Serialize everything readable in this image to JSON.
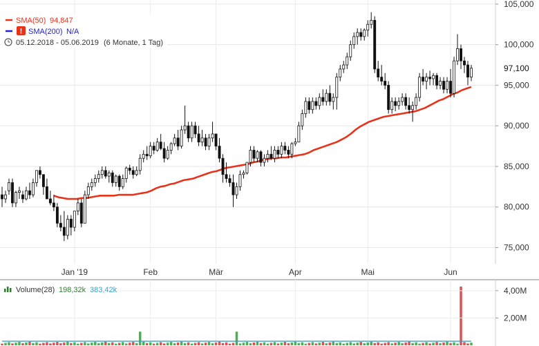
{
  "legend": {
    "sma50_label": "SMA(50)",
    "sma50_value": "94,847",
    "sma50_color": "#e8321a",
    "sma200_label": "SMA(200)",
    "sma200_value": "N/A",
    "sma200_color": "#2222cc",
    "warning_icon": "exclamation-warning-icon",
    "warning_color": "#e8321a",
    "period_icon": "clock-icon",
    "period_range": "05.12.2018 - 05.06.2019",
    "period_desc": "(6 Monate, 1 Tag)"
  },
  "volume_legend": {
    "icon": "bar-chart-icon",
    "label": "Volume(28)",
    "value1": "198,32k",
    "value2": "383,42k",
    "value1_color": "#2e7d32",
    "value2_color": "#3aa0c8"
  },
  "last_price_label": "97,100",
  "chart_data": [
    {
      "type": "candlestick",
      "x_tick_labels": [
        "Jan '19",
        "Feb",
        "Mär",
        "Apr",
        "Mai",
        "Jun"
      ],
      "y_tick_labels": [
        "105,000",
        "100,000",
        "95,000",
        "90,000",
        "85,000",
        "80,000",
        "75,000"
      ],
      "y_ticks": [
        105,
        100,
        95,
        90,
        85,
        80,
        75
      ],
      "ylim": [
        73,
        105.5
      ],
      "grid": true,
      "last_price": 97.1,
      "candle_up_color": "#ffffff",
      "candle_down_color": "#111111",
      "ohlc": [
        [
          81.5,
          82.5,
          80.0,
          81.0
        ],
        [
          81.0,
          82.0,
          80.5,
          81.5
        ],
        [
          82.0,
          83.5,
          81.5,
          83.0
        ],
        [
          83.0,
          83.5,
          80.0,
          80.5
        ],
        [
          80.5,
          82.0,
          80.0,
          81.8
        ],
        [
          81.8,
          82.5,
          81.0,
          82.0
        ],
        [
          81.5,
          82.0,
          80.5,
          81.0
        ],
        [
          81.0,
          82.5,
          80.8,
          82.0
        ],
        [
          82.0,
          83.0,
          81.0,
          81.5
        ],
        [
          81.5,
          83.5,
          81.2,
          83.0
        ],
        [
          83.0,
          84.5,
          82.5,
          84.5
        ],
        [
          84.5,
          85.0,
          83.5,
          84.0
        ],
        [
          84.0,
          84.0,
          81.5,
          82.5
        ],
        [
          82.5,
          83.5,
          81.0,
          81.0
        ],
        [
          81.0,
          82.0,
          80.2,
          80.5
        ],
        [
          80.5,
          81.5,
          79.5,
          80.0
        ],
        [
          80.0,
          80.5,
          77.5,
          78.0
        ],
        [
          78.0,
          79.0,
          77.0,
          77.5
        ],
        [
          77.5,
          79.5,
          75.8,
          76.5
        ],
        [
          76.5,
          79.0,
          76.0,
          78.5
        ],
        [
          78.5,
          79.0,
          76.5,
          77.5
        ],
        [
          77.5,
          79.5,
          77.0,
          79.5
        ],
        [
          79.5,
          81.0,
          79.0,
          80.5
        ],
        [
          80.5,
          81.0,
          77.5,
          78.0
        ],
        [
          78.0,
          82.0,
          78.0,
          81.5
        ],
        [
          81.5,
          83.0,
          81.0,
          82.5
        ],
        [
          82.5,
          83.5,
          82.0,
          83.0
        ],
        [
          83.0,
          84.0,
          82.5,
          83.5
        ],
        [
          83.5,
          84.5,
          83.0,
          84.0
        ],
        [
          84.0,
          85.0,
          83.5,
          84.5
        ],
        [
          84.5,
          85.0,
          83.5,
          83.8
        ],
        [
          83.8,
          84.5,
          83.0,
          84.2
        ],
        [
          84.2,
          84.5,
          82.5,
          83.0
        ],
        [
          83.0,
          84.0,
          82.5,
          83.8
        ],
        [
          83.8,
          84.0,
          82.0,
          82.5
        ],
        [
          82.5,
          84.0,
          82.2,
          83.5
        ],
        [
          83.5,
          85.0,
          83.0,
          84.8
        ],
        [
          84.8,
          85.2,
          84.0,
          84.5
        ],
        [
          84.5,
          85.0,
          83.5,
          84.0
        ],
        [
          84.0,
          85.0,
          83.8,
          84.5
        ],
        [
          84.5,
          86.5,
          84.0,
          86.0
        ],
        [
          86.0,
          87.0,
          85.5,
          86.5
        ],
        [
          86.5,
          87.5,
          85.8,
          86.3
        ],
        [
          86.3,
          88.0,
          86.0,
          87.5
        ],
        [
          87.5,
          88.0,
          86.5,
          87.0
        ],
        [
          87.0,
          88.5,
          86.8,
          88.0
        ],
        [
          88.0,
          89.0,
          87.0,
          87.2
        ],
        [
          87.2,
          88.0,
          85.5,
          86.0
        ],
        [
          86.0,
          87.5,
          85.8,
          87.0
        ],
        [
          87.0,
          88.0,
          86.5,
          87.8
        ],
        [
          87.8,
          89.0,
          87.5,
          88.5
        ],
        [
          88.5,
          89.5,
          87.0,
          87.5
        ],
        [
          87.5,
          90.0,
          87.2,
          89.5
        ],
        [
          89.5,
          92.5,
          89.0,
          90.0
        ],
        [
          90.0,
          90.5,
          88.0,
          88.5
        ],
        [
          88.5,
          90.5,
          88.0,
          90.0
        ],
        [
          90.0,
          90.5,
          88.5,
          89.0
        ],
        [
          89.0,
          90.0,
          87.5,
          88.0
        ],
        [
          88.0,
          89.5,
          87.5,
          88.5
        ],
        [
          88.5,
          89.0,
          87.0,
          87.5
        ],
        [
          87.5,
          89.0,
          87.0,
          88.5
        ],
        [
          88.5,
          90.5,
          88.0,
          89.0
        ],
        [
          89.0,
          89.0,
          87.0,
          87.5
        ],
        [
          87.5,
          88.5,
          85.5,
          86.0
        ],
        [
          86.0,
          86.5,
          83.0,
          84.0
        ],
        [
          84.0,
          85.5,
          83.0,
          83.5
        ],
        [
          83.5,
          84.0,
          82.5,
          83.0
        ],
        [
          83.0,
          84.0,
          80.0,
          81.5
        ],
        [
          81.5,
          83.0,
          81.0,
          82.5
        ],
        [
          82.5,
          84.5,
          82.0,
          84.0
        ],
        [
          84.0,
          84.5,
          83.5,
          84.2
        ],
        [
          84.2,
          85.5,
          84.0,
          85.5
        ],
        [
          85.5,
          87.5,
          85.0,
          87.0
        ],
        [
          87.0,
          87.5,
          85.5,
          86.0
        ],
        [
          86.0,
          87.0,
          85.5,
          86.8
        ],
        [
          86.8,
          87.0,
          85.0,
          85.5
        ],
        [
          85.5,
          86.5,
          85.0,
          86.0
        ],
        [
          86.0,
          87.0,
          85.5,
          86.5
        ],
        [
          86.5,
          87.5,
          85.8,
          86.0
        ],
        [
          86.0,
          87.5,
          85.5,
          87.0
        ],
        [
          87.0,
          87.5,
          86.0,
          86.5
        ],
        [
          86.5,
          88.0,
          86.0,
          87.5
        ],
        [
          87.5,
          88.0,
          86.5,
          87.0
        ],
        [
          87.0,
          87.5,
          86.0,
          86.5
        ],
        [
          86.5,
          88.0,
          86.0,
          87.8
        ],
        [
          87.8,
          88.5,
          87.5,
          88.0
        ],
        [
          88.0,
          90.5,
          88.0,
          90.0
        ],
        [
          90.0,
          92.0,
          89.5,
          91.5
        ],
        [
          91.5,
          93.5,
          91.0,
          93.0
        ],
        [
          93.0,
          93.5,
          91.5,
          92.0
        ],
        [
          92.0,
          93.5,
          91.5,
          93.0
        ],
        [
          93.0,
          93.5,
          92.0,
          92.5
        ],
        [
          92.5,
          94.0,
          92.0,
          93.5
        ],
        [
          93.5,
          94.5,
          92.5,
          93.0
        ],
        [
          93.0,
          94.5,
          92.5,
          94.0
        ],
        [
          94.0,
          95.0,
          92.5,
          93.0
        ],
        [
          93.0,
          94.0,
          92.0,
          93.5
        ],
        [
          93.5,
          96.5,
          92.0,
          96.0
        ],
        [
          96.0,
          97.5,
          95.5,
          97.0
        ],
        [
          97.0,
          98.0,
          96.5,
          97.5
        ],
        [
          97.5,
          99.0,
          97.0,
          98.5
        ],
        [
          98.5,
          100.5,
          98.0,
          100.0
        ],
        [
          100.0,
          101.5,
          99.5,
          101.0
        ],
        [
          101.0,
          102.0,
          100.0,
          101.5
        ],
        [
          101.5,
          102.0,
          100.5,
          101.0
        ],
        [
          101.0,
          102.0,
          100.5,
          101.8
        ],
        [
          101.8,
          103.0,
          101.0,
          102.5
        ],
        [
          102.5,
          104.0,
          102.0,
          103.0
        ],
        [
          103.0,
          103.5,
          96.5,
          97.0
        ],
        [
          97.0,
          98.0,
          95.5,
          96.0
        ],
        [
          96.0,
          97.5,
          95.0,
          95.5
        ],
        [
          95.5,
          96.5,
          94.5,
          95.0
        ],
        [
          95.0,
          95.5,
          91.5,
          92.0
        ],
        [
          92.0,
          93.5,
          91.5,
          93.0
        ],
        [
          93.0,
          93.5,
          91.8,
          92.5
        ],
        [
          92.5,
          93.5,
          92.0,
          93.0
        ],
        [
          93.0,
          94.0,
          92.5,
          93.5
        ],
        [
          93.5,
          94.0,
          92.0,
          92.5
        ],
        [
          92.5,
          93.5,
          91.5,
          92.0
        ],
        [
          92.0,
          93.0,
          90.5,
          92.5
        ],
        [
          92.5,
          94.0,
          92.0,
          93.5
        ],
        [
          93.5,
          96.5,
          93.0,
          96.0
        ],
        [
          96.0,
          97.0,
          95.0,
          95.5
        ],
        [
          95.5,
          96.5,
          94.5,
          96.0
        ],
        [
          96.0,
          96.8,
          95.0,
          95.8
        ],
        [
          95.8,
          96.5,
          95.0,
          96.2
        ],
        [
          96.2,
          96.5,
          94.5,
          95.0
        ],
        [
          95.0,
          96.0,
          94.5,
          95.5
        ],
        [
          95.5,
          96.0,
          94.0,
          94.5
        ],
        [
          94.5,
          96.0,
          94.0,
          95.5
        ],
        [
          95.5,
          97.0,
          93.5,
          94.0
        ],
        [
          94.0,
          98.5,
          93.5,
          98.0
        ],
        [
          98.0,
          101.3,
          97.5,
          99.5
        ],
        [
          99.5,
          100.0,
          97.0,
          98.0
        ],
        [
          98.0,
          98.5,
          96.5,
          97.5
        ],
        [
          97.5,
          98.0,
          95.0,
          96.0
        ],
        [
          96.0,
          97.5,
          95.5,
          97.1
        ]
      ],
      "sma50": [
        81.4,
        81.2,
        81.1,
        81.0,
        81.0,
        81.0,
        81.1,
        81.1,
        81.2,
        81.3,
        81.4,
        81.4,
        81.4,
        81.4,
        81.5,
        81.5,
        81.5,
        81.5,
        81.6,
        81.7,
        81.8,
        82.0,
        82.3,
        82.5,
        82.6,
        82.8,
        82.9,
        83.1,
        83.3,
        83.4,
        83.5,
        83.7,
        83.9,
        84.1,
        84.3,
        84.4,
        84.6,
        84.8,
        84.9,
        85.0,
        85.1,
        85.2,
        85.3,
        85.5,
        85.6,
        85.8,
        85.9,
        86.0,
        86.0,
        86.1,
        86.1,
        86.2,
        86.3,
        86.4,
        86.5,
        86.7,
        87.0,
        87.2,
        87.4,
        87.6,
        87.8,
        88.0,
        88.3,
        88.6,
        89.0,
        89.5,
        89.9,
        90.2,
        90.5,
        90.7,
        90.9,
        91.1,
        91.2,
        91.3,
        91.4,
        91.5,
        91.6,
        91.7,
        91.8,
        92.0,
        92.2,
        92.5,
        92.8,
        93.1,
        93.3,
        93.6,
        93.9,
        94.1,
        94.4,
        94.6,
        94.8
      ],
      "sma50_start_index": 45,
      "volume": {
        "ylim": [
          0,
          4.8
        ],
        "ticks": [
          4.0,
          2.0
        ],
        "tick_labels": [
          "4,00M",
          "2,00M"
        ],
        "spike_day": 133,
        "spike_value": 4.3,
        "second_spike_day": 137,
        "second_spike_value": 1.45,
        "typical_value": 0.2,
        "sma_level": 0.3
      }
    }
  ]
}
